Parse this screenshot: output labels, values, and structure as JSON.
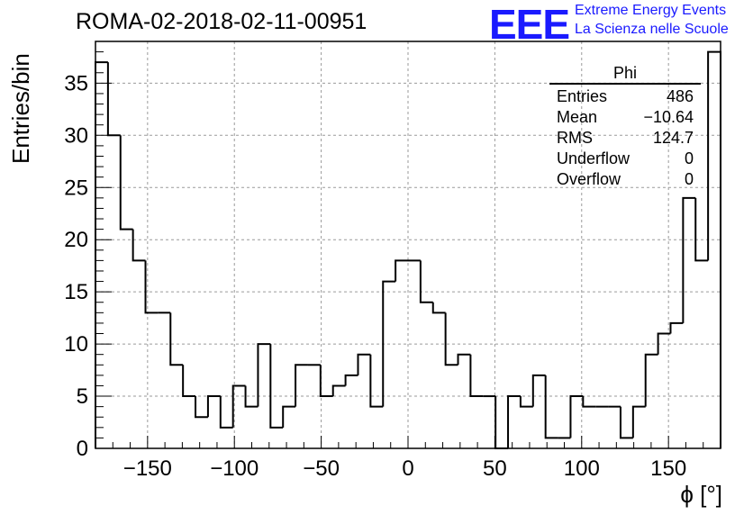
{
  "title": "ROMA-02-2018-02-11-00951",
  "logo": {
    "mark": "EEE",
    "line1": "Extreme Energy Events",
    "line2": "La Scienza nelle Scuole",
    "color": "#1a1aff"
  },
  "stats_box": {
    "title": "Phi",
    "rows": [
      {
        "label": "Entries",
        "value": "486"
      },
      {
        "label": "Mean",
        "value": "−10.64"
      },
      {
        "label": "RMS",
        "value": "124.7"
      },
      {
        "label": "Underflow",
        "value": "0"
      },
      {
        "label": "Overflow",
        "value": "0"
      }
    ]
  },
  "chart_data": {
    "type": "bar",
    "style": "step-histogram",
    "xlabel": "ϕ [°]",
    "ylabel": "Entries/bin",
    "xlim": [
      -180,
      180
    ],
    "ylim": [
      0,
      39
    ],
    "bin_width": 7.2,
    "xticks": [
      -150,
      -100,
      -50,
      0,
      50,
      100,
      150
    ],
    "xtick_labels": [
      "−150",
      "−100",
      "−50",
      "0",
      "50",
      "100",
      "150"
    ],
    "yticks": [
      0,
      5,
      10,
      15,
      20,
      25,
      30,
      35
    ],
    "grid": true,
    "line_color": "#000000",
    "values": [
      37,
      30,
      21,
      18,
      13,
      13,
      8,
      5,
      3,
      5,
      2,
      6,
      4,
      10,
      2,
      4,
      8,
      8,
      5,
      6,
      7,
      9,
      4,
      16,
      18,
      18,
      14,
      13,
      8,
      9,
      5,
      5,
      0,
      5,
      4,
      7,
      1,
      1,
      5,
      4,
      4,
      4,
      1,
      4,
      9,
      11,
      12,
      24,
      18,
      38
    ]
  }
}
